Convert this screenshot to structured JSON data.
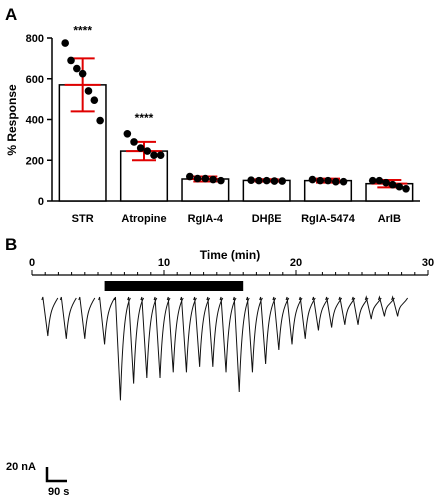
{
  "panels": {
    "a_label": "A",
    "b_label": "B"
  },
  "chart_data": [
    {
      "type": "bar",
      "panel": "A",
      "ylabel": "% Response",
      "ylim": [
        0,
        800
      ],
      "yticks": [
        "0",
        "200",
        "400",
        "600",
        "800"
      ],
      "categories": [
        "STR",
        "Atropine",
        "RgIA-4",
        "DHβE",
        "RgIA-5474",
        "ArIB"
      ],
      "values": [
        570,
        245,
        108,
        101,
        100,
        85
      ],
      "errors": [
        130,
        45,
        12,
        6,
        10,
        18
      ],
      "significance": [
        "****",
        "****",
        "",
        "",
        "",
        ""
      ],
      "points": [
        [
          775,
          690,
          650,
          625,
          540,
          495,
          395
        ],
        [
          330,
          290,
          260,
          245,
          225,
          225
        ],
        [
          120,
          110,
          110,
          105,
          100
        ],
        [
          102,
          100,
          100,
          98,
          98
        ],
        [
          105,
          100,
          100,
          95,
          95
        ],
        [
          100,
          100,
          90,
          80,
          70,
          60
        ]
      ],
      "colors": {
        "bar_fill": "#ffffff",
        "bar_stroke": "#000000",
        "error": "#e00000",
        "point": "#000000",
        "ref_point": "#8b0000"
      }
    },
    {
      "type": "line",
      "panel": "B",
      "xlabel": "Time (min)",
      "xlim": [
        0,
        30
      ],
      "xticks": [
        "0",
        "10",
        "20",
        "30"
      ],
      "application_bar": [
        5.5,
        16
      ],
      "pulse_times": [
        1.2,
        2.6,
        4.0,
        5.5,
        6.7,
        7.7,
        8.7,
        9.7,
        10.7,
        11.7,
        12.7,
        13.7,
        14.7,
        15.7,
        16.7,
        17.7,
        18.7,
        19.7,
        20.7,
        21.7,
        22.7,
        23.7,
        24.7,
        25.7,
        26.7,
        27.7
      ],
      "pulse_amplitudes_nA": [
        15,
        16,
        16,
        18,
        38,
        32,
        30,
        30,
        28,
        28,
        26,
        26,
        28,
        35,
        28,
        25,
        20,
        18,
        16,
        13,
        12,
        11,
        11,
        9,
        8,
        8
      ],
      "scale_bar": {
        "current": "20 nA",
        "time": "90 s"
      }
    }
  ]
}
